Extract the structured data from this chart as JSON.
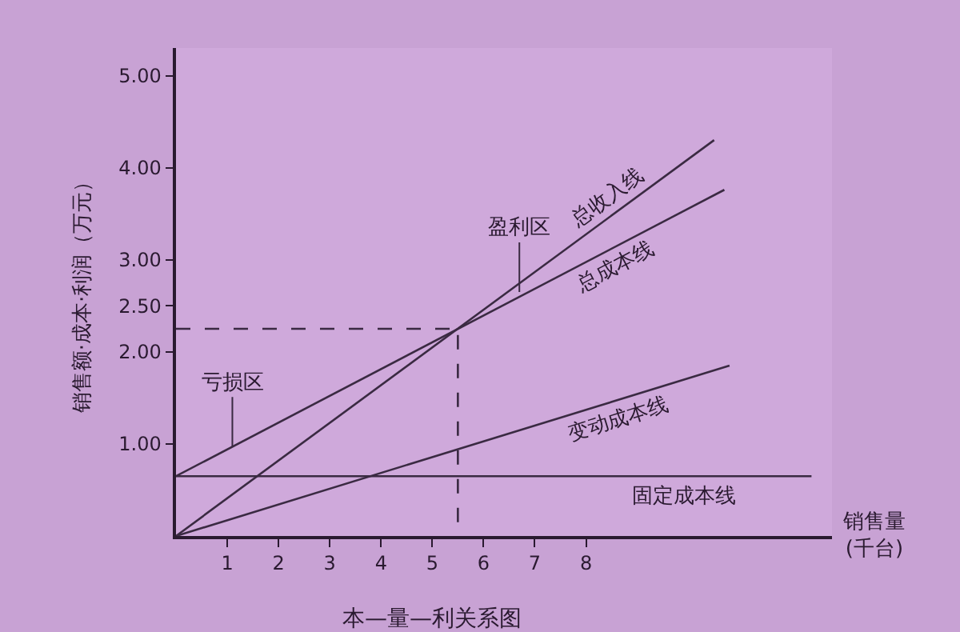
{
  "chart_data": {
    "type": "line",
    "title": "本—量—利关系图",
    "xlabel": "销售量\n(千台)",
    "ylabel": "销售额·成本·利润（万元）",
    "series": [
      {
        "name": "总收入线",
        "color": "#3a2a42",
        "x": [
          0,
          10.5
        ],
        "values": [
          0,
          4.3
        ]
      },
      {
        "name": "总成本线",
        "color": "#3a2a42",
        "x": [
          0,
          10.7
        ],
        "values": [
          0.65,
          3.76
        ]
      },
      {
        "name": "变动成本线",
        "color": "#3a2a42",
        "x": [
          0,
          10.8
        ],
        "values": [
          0,
          1.85
        ]
      },
      {
        "name": "固定成本线",
        "color": "#3a2a42",
        "x": [
          0,
          12.4
        ],
        "values": [
          0.65,
          0.65
        ]
      },
      {
        "color": "#3a2a42",
        "x": [
          0,
          5.5,
          5.5
        ],
        "values": [
          2.25,
          2.25,
          0
        ],
        "line_style": "dashed"
      }
    ],
    "annotations": [
      {
        "text": "盈利区",
        "x": 6.7,
        "y": 2.65
      },
      {
        "text": "亏损区",
        "x": 1.1,
        "y": 0.97
      }
    ],
    "xlim": [
      0,
      12.8
    ],
    "ylim": [
      0,
      5.3
    ],
    "xticks": [
      1,
      2,
      3,
      4,
      5,
      6,
      7,
      8
    ],
    "yticks": [
      {
        "value": 1,
        "label": "1.00"
      },
      {
        "value": 2,
        "label": "2.00"
      },
      {
        "value": 2.5,
        "label": "2.50"
      },
      {
        "value": 3,
        "label": "3.00"
      },
      {
        "value": 4,
        "label": "4.00"
      },
      {
        "value": 5,
        "label": "5.00"
      }
    ],
    "grid": false,
    "legend": false,
    "marker": "none",
    "line_style": "solid"
  }
}
